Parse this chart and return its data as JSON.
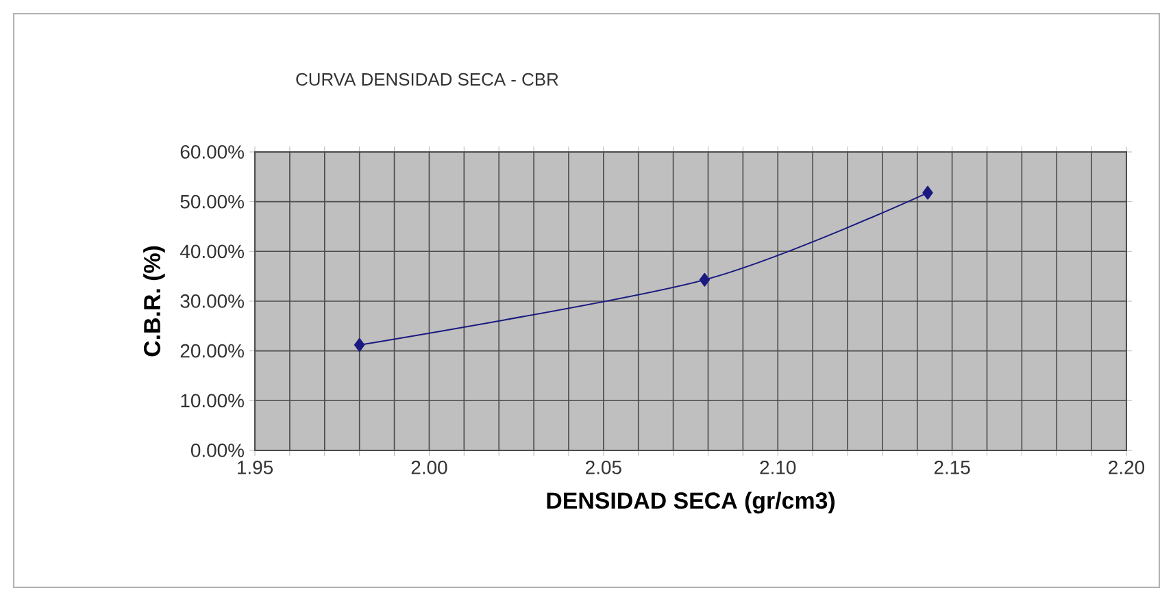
{
  "chart_data": {
    "type": "line",
    "title": "CURVA DENSIDAD SECA - CBR",
    "xlabel": "DENSIDAD SECA (gr/cm3)",
    "ylabel": "C.B.R. (%)",
    "series": [
      {
        "x": [
          1.98,
          2.079,
          2.143
        ],
        "values": [
          21.2,
          34.3,
          51.8
        ],
        "color": "#1a1a80"
      }
    ],
    "xlim": [
      1.95,
      2.2
    ],
    "xticks": [
      {
        "value": 1.95,
        "label": "1.95"
      },
      {
        "value": 1.96,
        "label": null
      },
      {
        "value": 1.97,
        "label": null
      },
      {
        "value": 1.98,
        "label": null
      },
      {
        "value": 1.99,
        "label": null
      },
      {
        "value": 2.0,
        "label": "2.00"
      },
      {
        "value": 2.01,
        "label": null
      },
      {
        "value": 2.02,
        "label": null
      },
      {
        "value": 2.03,
        "label": null
      },
      {
        "value": 2.04,
        "label": null
      },
      {
        "value": 2.05,
        "label": "2.05"
      },
      {
        "value": 2.06,
        "label": null
      },
      {
        "value": 2.07,
        "label": null
      },
      {
        "value": 2.08,
        "label": null
      },
      {
        "value": 2.09,
        "label": null
      },
      {
        "value": 2.1,
        "label": "2.10"
      },
      {
        "value": 2.11,
        "label": null
      },
      {
        "value": 2.12,
        "label": null
      },
      {
        "value": 2.13,
        "label": null
      },
      {
        "value": 2.14,
        "label": null
      },
      {
        "value": 2.15,
        "label": "2.15"
      },
      {
        "value": 2.16,
        "label": null
      },
      {
        "value": 2.17,
        "label": null
      },
      {
        "value": 2.18,
        "label": null
      },
      {
        "value": 2.19,
        "label": null
      },
      {
        "value": 2.2,
        "label": "2.20"
      }
    ],
    "ylim": [
      0,
      60
    ],
    "yticks": [
      {
        "value": 0,
        "label": "0.00%"
      },
      {
        "value": 10,
        "label": "10.00%"
      },
      {
        "value": 20,
        "label": "20.00%"
      },
      {
        "value": 30,
        "label": "30.00%"
      },
      {
        "value": 40,
        "label": "40.00%"
      },
      {
        "value": 50,
        "label": "50.00%"
      },
      {
        "value": 60,
        "label": "60.00%"
      }
    ],
    "grid": true,
    "marker": "diamond",
    "line_style": "solid"
  }
}
